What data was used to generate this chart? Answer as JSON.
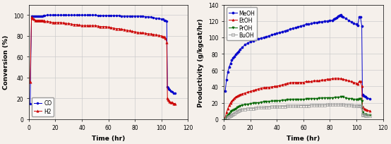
{
  "left": {
    "ylabel": "Conversion (%)",
    "xlabel": "Time (hr)",
    "xlim": [
      0,
      120
    ],
    "ylim": [
      0,
      110
    ],
    "yticks": [
      0,
      20,
      40,
      60,
      80,
      100
    ],
    "xticks": [
      0,
      20,
      40,
      60,
      80,
      100,
      120
    ],
    "CO": {
      "color": "#0000cc",
      "marker": "o",
      "label": "CO",
      "x": [
        1,
        2,
        3,
        4,
        5,
        6,
        7,
        8,
        9,
        10,
        11,
        12,
        14,
        16,
        18,
        20,
        22,
        24,
        26,
        28,
        30,
        32,
        34,
        36,
        38,
        40,
        42,
        44,
        46,
        48,
        50,
        52,
        54,
        56,
        58,
        60,
        62,
        64,
        66,
        68,
        70,
        72,
        74,
        76,
        78,
        80,
        82,
        84,
        86,
        88,
        90,
        92,
        94,
        96,
        98,
        100,
        101,
        102,
        103,
        104,
        104.5,
        105,
        105.5,
        106,
        107,
        108,
        109,
        110
      ],
      "y": [
        15,
        99,
        99,
        99,
        99,
        99,
        99,
        99,
        99,
        99,
        99.5,
        99.5,
        100,
        100,
        100,
        100,
        100,
        100,
        100,
        100,
        100,
        100,
        100,
        100,
        100,
        100,
        100,
        100,
        100,
        100,
        100,
        99.5,
        99.5,
        99.5,
        99.5,
        99.5,
        99.5,
        99.5,
        99.5,
        99.5,
        99,
        99,
        99,
        99,
        99,
        99,
        99,
        99,
        99,
        98.5,
        98.5,
        98,
        97.5,
        97,
        97,
        96,
        96,
        95,
        95,
        94,
        31,
        30,
        29,
        28,
        27,
        26,
        25,
        25
      ]
    },
    "H2": {
      "color": "#cc0000",
      "marker": "^",
      "label": "H2",
      "x": [
        1,
        2,
        3,
        4,
        5,
        6,
        7,
        8,
        9,
        10,
        11,
        12,
        14,
        16,
        18,
        20,
        22,
        24,
        26,
        28,
        30,
        32,
        34,
        36,
        38,
        40,
        42,
        44,
        46,
        48,
        50,
        52,
        54,
        56,
        58,
        60,
        62,
        64,
        66,
        68,
        70,
        72,
        74,
        76,
        78,
        80,
        82,
        84,
        86,
        88,
        90,
        92,
        94,
        96,
        98,
        100,
        101,
        102,
        103,
        104,
        104.5,
        105,
        105.5,
        106,
        107,
        108,
        109,
        110
      ],
      "y": [
        36,
        98,
        97,
        96,
        95,
        95,
        95,
        95,
        95,
        95,
        94.5,
        94,
        94,
        93.5,
        93,
        93,
        93,
        93,
        92.5,
        92,
        92,
        91.5,
        91,
        91,
        90.5,
        90,
        90,
        90,
        90,
        90,
        90,
        89.5,
        89,
        89,
        89,
        88.5,
        88,
        87.5,
        87,
        87,
        86.5,
        86,
        85.5,
        85,
        84.5,
        84,
        83.5,
        83,
        83,
        82.5,
        82,
        82,
        81.5,
        81,
        80.5,
        80,
        79.5,
        79,
        78,
        74,
        20,
        19,
        18,
        17,
        16,
        16,
        15,
        15
      ]
    }
  },
  "right": {
    "ylabel": "Productivity (g/kgcat/hr)",
    "xlabel": "Time (hr)",
    "xlim": [
      0,
      120
    ],
    "ylim": [
      0,
      140
    ],
    "yticks": [
      0,
      20,
      40,
      60,
      80,
      100,
      120,
      140
    ],
    "xticks": [
      0,
      20,
      40,
      60,
      80,
      100,
      120
    ],
    "MeOH": {
      "color": "#0000cc",
      "marker": "o",
      "label": "MeOH",
      "x": [
        1,
        2,
        3,
        4,
        5,
        6,
        7,
        8,
        9,
        10,
        11,
        12,
        14,
        16,
        18,
        20,
        22,
        24,
        26,
        28,
        30,
        32,
        34,
        36,
        38,
        40,
        42,
        44,
        46,
        48,
        50,
        52,
        54,
        56,
        58,
        60,
        62,
        64,
        66,
        68,
        70,
        72,
        74,
        76,
        78,
        80,
        82,
        83,
        84,
        85,
        86,
        87,
        88,
        89,
        90,
        92,
        94,
        96,
        98,
        100,
        101,
        102,
        103,
        104,
        104.5,
        105,
        106,
        107,
        108,
        110
      ],
      "y": [
        34,
        48,
        58,
        64,
        68,
        72,
        75,
        77,
        79,
        81,
        83,
        85,
        88,
        91,
        93,
        95,
        96,
        97,
        98,
        99,
        100,
        101,
        102,
        103,
        104,
        105,
        106,
        107,
        108,
        109,
        110,
        111,
        112,
        113,
        114,
        115,
        116,
        116,
        117,
        118,
        118,
        119,
        119,
        120,
        120,
        121,
        121,
        122,
        123,
        124,
        126,
        127,
        128,
        126,
        125,
        123,
        121,
        119,
        117,
        116,
        115,
        125,
        125,
        114,
        30,
        29,
        28,
        27,
        26,
        25
      ]
    },
    "EtOH": {
      "color": "#cc0000",
      "marker": "^",
      "label": "EtOH",
      "x": [
        1,
        2,
        3,
        4,
        5,
        6,
        7,
        8,
        9,
        10,
        11,
        12,
        14,
        16,
        18,
        20,
        22,
        24,
        26,
        28,
        30,
        32,
        34,
        36,
        38,
        40,
        42,
        44,
        46,
        48,
        50,
        52,
        54,
        56,
        58,
        60,
        62,
        64,
        66,
        68,
        70,
        72,
        74,
        76,
        78,
        80,
        82,
        84,
        86,
        88,
        90,
        92,
        94,
        96,
        98,
        100,
        101,
        102,
        103,
        104,
        104.5,
        105,
        106,
        107,
        108,
        110
      ],
      "y": [
        2,
        8,
        13,
        17,
        20,
        22,
        24,
        26,
        27,
        28,
        29,
        30,
        31,
        32,
        33,
        34,
        35,
        36,
        37,
        38,
        38.5,
        39,
        39,
        39.5,
        40,
        40.5,
        41,
        42,
        43,
        44,
        44.5,
        45,
        45,
        45,
        45,
        45,
        46,
        46,
        46,
        47,
        47,
        47,
        48,
        48,
        49,
        49,
        49.5,
        50,
        50,
        49.5,
        49,
        48,
        47,
        46,
        45,
        44,
        43,
        46,
        46,
        40,
        15,
        14,
        13,
        12,
        11,
        10
      ]
    },
    "PrOH": {
      "color": "#006600",
      "marker": "v",
      "label": "PrOH",
      "x": [
        1,
        2,
        3,
        4,
        5,
        6,
        7,
        8,
        9,
        10,
        11,
        12,
        14,
        16,
        18,
        20,
        22,
        24,
        26,
        28,
        30,
        32,
        34,
        36,
        38,
        40,
        42,
        44,
        46,
        48,
        50,
        52,
        54,
        56,
        58,
        60,
        62,
        64,
        66,
        68,
        70,
        72,
        74,
        76,
        78,
        80,
        82,
        84,
        86,
        88,
        90,
        92,
        94,
        96,
        98,
        100,
        101,
        102,
        103,
        104,
        104.5,
        105,
        106,
        107,
        108,
        110
      ],
      "y": [
        0,
        3,
        5,
        7,
        9,
        10,
        11,
        12,
        13,
        14,
        15,
        16,
        17,
        17.5,
        18,
        19,
        19.5,
        20,
        20,
        20.5,
        21,
        21,
        21.5,
        22,
        22,
        22.5,
        22.5,
        23,
        23,
        23.5,
        23.5,
        24,
        24,
        24,
        24,
        24,
        24.5,
        24.5,
        25,
        25,
        25,
        25.5,
        25.5,
        26,
        26,
        26,
        26,
        26.5,
        26.5,
        27,
        27,
        26,
        25,
        25,
        24,
        24,
        24,
        25,
        25,
        22,
        8,
        7,
        6,
        6,
        5,
        5
      ]
    },
    "BuOH": {
      "color": "#999999",
      "marker": "s",
      "label": "BuOH",
      "x": [
        1,
        2,
        3,
        4,
        5,
        6,
        7,
        8,
        9,
        10,
        11,
        12,
        14,
        16,
        18,
        20,
        22,
        24,
        26,
        28,
        30,
        32,
        34,
        36,
        38,
        40,
        42,
        44,
        46,
        48,
        50,
        52,
        54,
        56,
        58,
        60,
        62,
        64,
        66,
        68,
        70,
        72,
        74,
        76,
        78,
        80,
        82,
        84,
        86,
        88,
        90,
        92,
        94,
        96,
        98,
        100,
        101,
        102,
        103,
        104,
        104.5,
        105,
        106,
        107,
        108,
        110
      ],
      "y": [
        0,
        1,
        2,
        3,
        4,
        5,
        6,
        7,
        8,
        9,
        10,
        11,
        11.5,
        12,
        12.5,
        13,
        13,
        13.5,
        14,
        14,
        14,
        14.5,
        14.5,
        15,
        15,
        15,
        15,
        15.5,
        15.5,
        16,
        16,
        16,
        16,
        16,
        16.5,
        16.5,
        16.5,
        16.5,
        17,
        17,
        17,
        17,
        17,
        17,
        17.5,
        17.5,
        17.5,
        17.5,
        17.5,
        17.5,
        17.5,
        17,
        17,
        17,
        16,
        16,
        16,
        16.5,
        16.5,
        14,
        6,
        5,
        5,
        4,
        4,
        4
      ]
    }
  },
  "bg_color": "#f5f0eb",
  "grid_color": "#cccccc",
  "figsize": [
    5.54,
    2.05
  ],
  "dpi": 100
}
